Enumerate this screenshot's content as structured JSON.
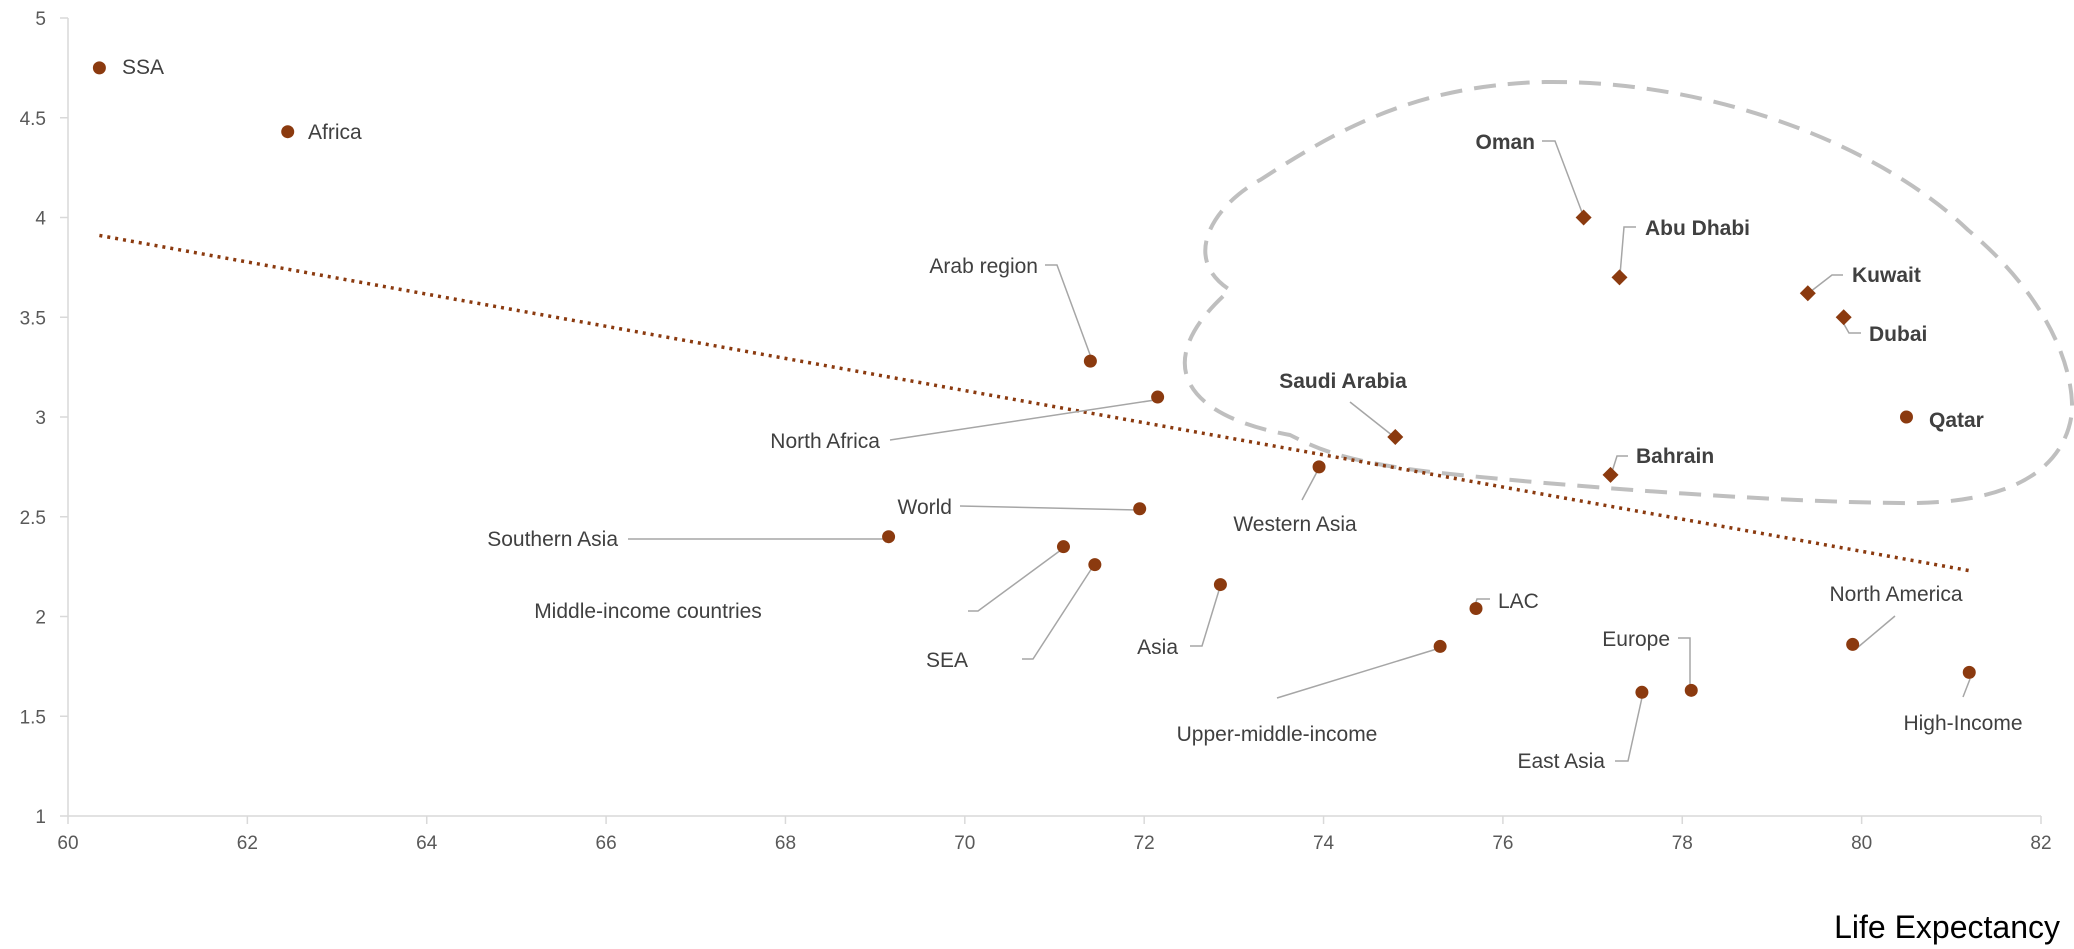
{
  "chart_data": {
    "type": "scatter",
    "xlabel": "Life Expectancy",
    "ylabel": "",
    "xlim": [
      60,
      82
    ],
    "ylim": [
      1,
      5
    ],
    "x_ticks": [
      "60",
      "62",
      "64",
      "66",
      "68",
      "70",
      "72",
      "74",
      "76",
      "78",
      "80",
      "82"
    ],
    "y_ticks": [
      "1",
      "1.5",
      "2",
      "2.5",
      "3",
      "3.5",
      "4",
      "4.5",
      "5"
    ],
    "grid": false,
    "legend": "none",
    "colors": {
      "marker": "#8B3A0F",
      "trendline": "#8B3A0F",
      "leader": "#A6A6A6",
      "highlight_outline": "#BFBFBF"
    },
    "trendline": {
      "style": "dotted",
      "from": [
        60.35,
        3.91
      ],
      "to": [
        81.2,
        2.23
      ]
    },
    "highlight_region": "dashed outline around Gulf points",
    "points": [
      {
        "label": "SSA",
        "x": 60.35,
        "y": 4.75,
        "marker": "circle",
        "bold": false
      },
      {
        "label": "Africa",
        "x": 62.45,
        "y": 4.43,
        "marker": "circle",
        "bold": false
      },
      {
        "label": "Arab region",
        "x": 71.4,
        "y": 3.28,
        "marker": "circle",
        "bold": false
      },
      {
        "label": "North Africa",
        "x": 72.15,
        "y": 3.1,
        "marker": "circle",
        "bold": false
      },
      {
        "label": "Western Asia",
        "x": 73.95,
        "y": 2.75,
        "marker": "circle",
        "bold": false
      },
      {
        "label": "World",
        "x": 71.95,
        "y": 2.54,
        "marker": "circle",
        "bold": false
      },
      {
        "label": "Southern Asia",
        "x": 69.15,
        "y": 2.4,
        "marker": "circle",
        "bold": false
      },
      {
        "label": "Middle-income countries",
        "x": 71.1,
        "y": 2.35,
        "marker": "circle",
        "bold": false
      },
      {
        "label": "SEA",
        "x": 71.45,
        "y": 2.26,
        "marker": "circle",
        "bold": false
      },
      {
        "label": "Asia",
        "x": 72.85,
        "y": 2.16,
        "marker": "circle",
        "bold": false
      },
      {
        "label": "LAC",
        "x": 75.7,
        "y": 2.04,
        "marker": "circle",
        "bold": false
      },
      {
        "label": "Upper-middle-income",
        "x": 75.3,
        "y": 1.85,
        "marker": "circle",
        "bold": false
      },
      {
        "label": "East Asia",
        "x": 77.55,
        "y": 1.62,
        "marker": "circle",
        "bold": false
      },
      {
        "label": "Europe",
        "x": 78.1,
        "y": 1.63,
        "marker": "circle",
        "bold": false
      },
      {
        "label": "North America",
        "x": 79.9,
        "y": 1.86,
        "marker": "circle",
        "bold": false
      },
      {
        "label": "High-Income",
        "x": 81.2,
        "y": 1.72,
        "marker": "circle",
        "bold": false
      },
      {
        "label": "Qatar",
        "x": 80.5,
        "y": 3.0,
        "marker": "circle",
        "bold": true
      },
      {
        "label": "Oman",
        "x": 76.9,
        "y": 4.0,
        "marker": "diamond",
        "bold": true
      },
      {
        "label": "Abu Dhabi",
        "x": 77.3,
        "y": 3.7,
        "marker": "diamond",
        "bold": true
      },
      {
        "label": "Kuwait",
        "x": 79.4,
        "y": 3.62,
        "marker": "diamond",
        "bold": true
      },
      {
        "label": "Dubai",
        "x": 79.8,
        "y": 3.5,
        "marker": "diamond",
        "bold": true
      },
      {
        "label": "Saudi Arabia",
        "x": 74.8,
        "y": 2.9,
        "marker": "diamond",
        "bold": true
      },
      {
        "label": "Bahrain",
        "x": 77.2,
        "y": 2.71,
        "marker": "diamond",
        "bold": true
      }
    ]
  }
}
